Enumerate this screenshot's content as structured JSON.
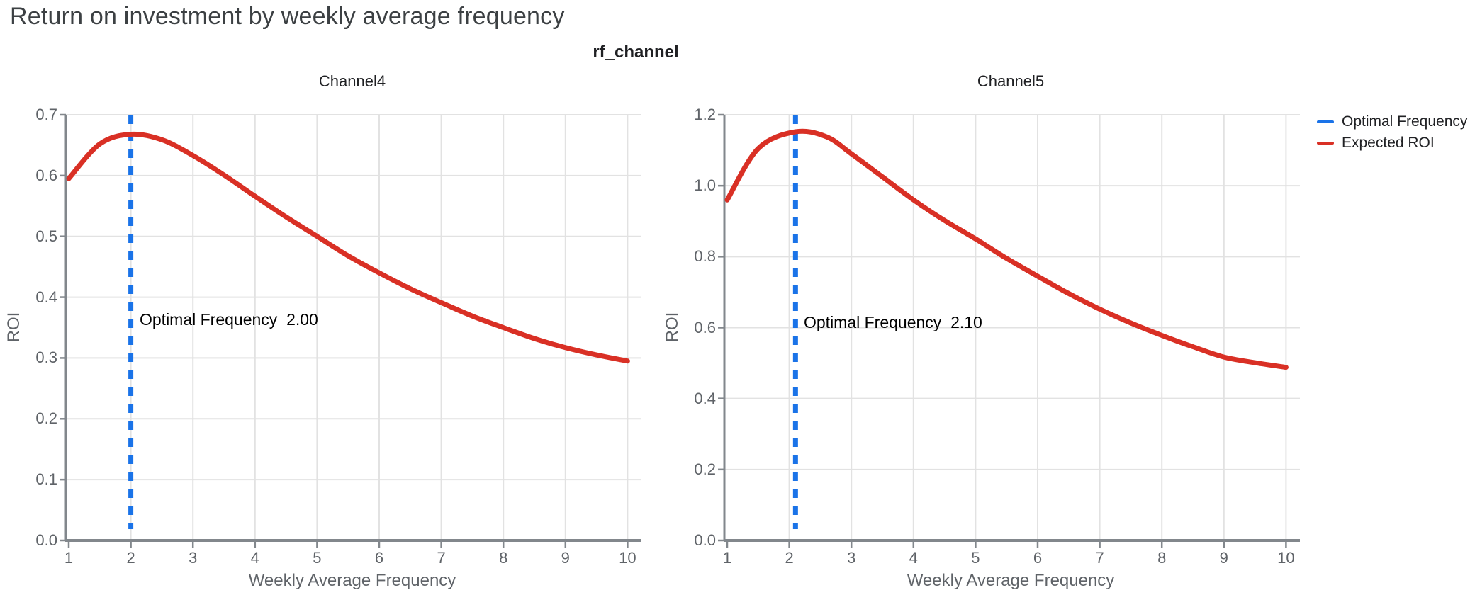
{
  "page": {
    "title": "Return on investment by weekly average frequency",
    "facet_title": "rf_channel"
  },
  "legend": {
    "position": "right",
    "items": [
      {
        "label": "Optimal Frequency",
        "color": "#1a73e8"
      },
      {
        "label": "Expected ROI",
        "color": "#d93025"
      }
    ]
  },
  "colors": {
    "expected_roi": "#d93025",
    "optimal_frequency": "#1a73e8",
    "grid": "#e2e2e2",
    "axis": "#82878c",
    "tick_text": "#5f6368",
    "title_text": "#3c4043"
  },
  "chart_data": [
    {
      "type": "line",
      "title": "Channel4",
      "xlabel": "Weekly Average Frequency",
      "ylabel": "ROI",
      "xlim": [
        1,
        10
      ],
      "ylim": [
        0,
        0.7
      ],
      "grid": true,
      "xticks": [
        1,
        2,
        3,
        4,
        5,
        6,
        7,
        8,
        9,
        10
      ],
      "ytick_labels": [
        "0.0",
        "0.1",
        "0.2",
        "0.3",
        "0.4",
        "0.5",
        "0.6",
        "0.7"
      ],
      "vline": {
        "name": "Optimal Frequency",
        "x": 2.0,
        "style": "dashed",
        "color": "#1a73e8"
      },
      "annotation": {
        "text": "Optimal Frequency  2.00",
        "x": 2.0,
        "y": 0.363
      },
      "series": [
        {
          "name": "Expected ROI",
          "color": "#d93025",
          "x": [
            1,
            1.5,
            2,
            2.5,
            3,
            3.5,
            4,
            4.5,
            5,
            5.5,
            6,
            6.5,
            7,
            7.5,
            8,
            8.5,
            9,
            9.5,
            10
          ],
          "y": [
            0.595,
            0.652,
            0.668,
            0.659,
            0.633,
            0.601,
            0.566,
            0.532,
            0.5,
            0.468,
            0.44,
            0.414,
            0.391,
            0.369,
            0.35,
            0.332,
            0.317,
            0.305,
            0.295
          ]
        }
      ]
    },
    {
      "type": "line",
      "title": "Channel5",
      "xlabel": "Weekly Average Frequency",
      "ylabel": "ROI",
      "xlim": [
        1,
        10
      ],
      "ylim": [
        0,
        1.2
      ],
      "grid": true,
      "xticks": [
        1,
        2,
        3,
        4,
        5,
        6,
        7,
        8,
        9,
        10
      ],
      "ytick_labels": [
        "0.0",
        "0.2",
        "0.4",
        "0.6",
        "0.8",
        "1.0",
        "1.2"
      ],
      "vline": {
        "name": "Optimal Frequency",
        "x": 2.1,
        "style": "dashed",
        "color": "#1a73e8"
      },
      "annotation": {
        "text": "Optimal Frequency  2.10",
        "x": 2.1,
        "y": 0.614
      },
      "series": [
        {
          "name": "Expected ROI",
          "color": "#d93025",
          "x": [
            1,
            1.5,
            2.1,
            2.6,
            3,
            3.5,
            4,
            4.5,
            5,
            5.5,
            6,
            6.5,
            7,
            7.5,
            8,
            8.5,
            9,
            9.5,
            10
          ],
          "y": [
            0.96,
            1.105,
            1.152,
            1.138,
            1.09,
            1.025,
            0.96,
            0.902,
            0.85,
            0.795,
            0.745,
            0.696,
            0.652,
            0.613,
            0.578,
            0.546,
            0.517,
            0.501,
            0.488
          ]
        }
      ]
    }
  ]
}
